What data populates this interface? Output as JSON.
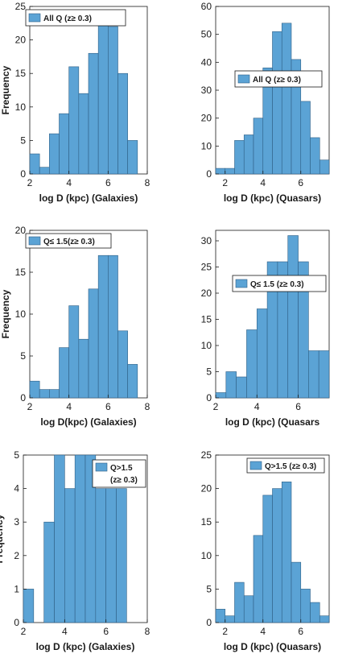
{
  "colors": {
    "bar_fill": "#5ba3d5",
    "bar_stroke": "#2f5f85",
    "axis": "#1a1a1a",
    "background": "#ffffff"
  },
  "chart_data": [
    {
      "type": "bar",
      "histogram": true,
      "xlabel": "log D (kpc) (Galaxies)",
      "ylabel": "Frequency",
      "xlim": [
        2,
        8
      ],
      "ylim": [
        0,
        25
      ],
      "xticks": [
        2,
        4,
        6,
        8
      ],
      "yticks": [
        0,
        5,
        10,
        15,
        20,
        25
      ],
      "legend": {
        "text": "All Q  (z≥ 0.3)",
        "placement": "top-left"
      },
      "bins": [
        {
          "x0": 2.0,
          "x1": 2.5,
          "count": 3
        },
        {
          "x0": 2.5,
          "x1": 3.0,
          "count": 1
        },
        {
          "x0": 3.0,
          "x1": 3.5,
          "count": 6
        },
        {
          "x0": 3.5,
          "x1": 4.0,
          "count": 9
        },
        {
          "x0": 4.0,
          "x1": 4.5,
          "count": 16
        },
        {
          "x0": 4.5,
          "x1": 5.0,
          "count": 12
        },
        {
          "x0": 5.0,
          "x1": 5.5,
          "count": 18
        },
        {
          "x0": 5.5,
          "x1": 6.0,
          "count": 23
        },
        {
          "x0": 6.0,
          "x1": 6.5,
          "count": 22
        },
        {
          "x0": 6.5,
          "x1": 7.0,
          "count": 15
        },
        {
          "x0": 7.0,
          "x1": 7.5,
          "count": 5
        }
      ]
    },
    {
      "type": "bar",
      "histogram": true,
      "xlabel": "log D (kpc) (Quasars)",
      "ylabel": "",
      "xlim": [
        1.5,
        7.5
      ],
      "ylim": [
        0,
        60
      ],
      "xticks": [
        2,
        4,
        6
      ],
      "yticks": [
        0,
        10,
        20,
        30,
        40,
        50,
        60
      ],
      "legend": {
        "text": "All Q  (z≥ 0.3)",
        "placement": "center-right"
      },
      "bins": [
        {
          "x0": 1.5,
          "x1": 2.0,
          "count": 2
        },
        {
          "x0": 2.0,
          "x1": 2.5,
          "count": 2
        },
        {
          "x0": 2.5,
          "x1": 3.0,
          "count": 12
        },
        {
          "x0": 3.0,
          "x1": 3.5,
          "count": 14
        },
        {
          "x0": 3.5,
          "x1": 4.0,
          "count": 20
        },
        {
          "x0": 4.0,
          "x1": 4.5,
          "count": 38
        },
        {
          "x0": 4.5,
          "x1": 5.0,
          "count": 51
        },
        {
          "x0": 5.0,
          "x1": 5.5,
          "count": 54
        },
        {
          "x0": 5.5,
          "x1": 6.0,
          "count": 41
        },
        {
          "x0": 6.0,
          "x1": 6.5,
          "count": 26
        },
        {
          "x0": 6.5,
          "x1": 7.0,
          "count": 13
        },
        {
          "x0": 7.0,
          "x1": 7.5,
          "count": 5
        }
      ]
    },
    {
      "type": "bar",
      "histogram": true,
      "xlabel": "log D(kpc) (Galaxies)",
      "ylabel": "Frequency",
      "xlim": [
        2,
        8
      ],
      "ylim": [
        0,
        20
      ],
      "xticks": [
        2,
        4,
        6,
        8
      ],
      "yticks": [
        0,
        5,
        10,
        15,
        20
      ],
      "legend": {
        "text": "Q≤ 1.5(z≥ 0.3)",
        "placement": "top-left"
      },
      "bins": [
        {
          "x0": 2.0,
          "x1": 2.5,
          "count": 2
        },
        {
          "x0": 2.5,
          "x1": 3.0,
          "count": 1
        },
        {
          "x0": 3.0,
          "x1": 3.5,
          "count": 1
        },
        {
          "x0": 3.5,
          "x1": 4.0,
          "count": 6
        },
        {
          "x0": 4.0,
          "x1": 4.5,
          "count": 11
        },
        {
          "x0": 4.5,
          "x1": 5.0,
          "count": 7
        },
        {
          "x0": 5.0,
          "x1": 5.5,
          "count": 13
        },
        {
          "x0": 5.5,
          "x1": 6.0,
          "count": 17
        },
        {
          "x0": 6.0,
          "x1": 6.5,
          "count": 17
        },
        {
          "x0": 6.5,
          "x1": 7.0,
          "count": 8
        },
        {
          "x0": 7.0,
          "x1": 7.5,
          "count": 4
        }
      ]
    },
    {
      "type": "bar",
      "histogram": true,
      "xlabel": "log D (kpc) (Quasars",
      "ylabel": "",
      "xlim": [
        2,
        7.5
      ],
      "ylim": [
        0,
        32
      ],
      "xticks": [
        2,
        4,
        6
      ],
      "yticks": [
        0,
        5,
        10,
        15,
        20,
        25,
        30
      ],
      "legend": {
        "text": "Q≤ 1.5 (z≥ 0.3)",
        "placement": "center-right"
      },
      "bins": [
        {
          "x0": 2.0,
          "x1": 2.5,
          "count": 1
        },
        {
          "x0": 2.5,
          "x1": 3.0,
          "count": 5
        },
        {
          "x0": 3.0,
          "x1": 3.5,
          "count": 4
        },
        {
          "x0": 3.5,
          "x1": 4.0,
          "count": 13
        },
        {
          "x0": 4.0,
          "x1": 4.5,
          "count": 17
        },
        {
          "x0": 4.5,
          "x1": 5.0,
          "count": 26
        },
        {
          "x0": 5.0,
          "x1": 5.5,
          "count": 26
        },
        {
          "x0": 5.5,
          "x1": 6.0,
          "count": 31
        },
        {
          "x0": 6.0,
          "x1": 6.5,
          "count": 26
        },
        {
          "x0": 6.5,
          "x1": 7.0,
          "count": 9
        },
        {
          "x0": 7.0,
          "x1": 7.5,
          "count": 9
        }
      ]
    },
    {
      "type": "bar",
      "histogram": true,
      "xlabel": "log D (kpc) (Galaxies)",
      "ylabel": "Frequency",
      "xlim": [
        2,
        8
      ],
      "ylim": [
        0,
        5
      ],
      "xticks": [
        2,
        4,
        6,
        8
      ],
      "yticks": [
        0,
        1,
        2,
        3,
        4,
        5
      ],
      "legend": {
        "lines": [
          "Q>1.5",
          "(z≥ 0.3)"
        ],
        "placement": "top-right"
      },
      "bins": [
        {
          "x0": 2.0,
          "x1": 2.5,
          "count": 1
        },
        {
          "x0": 2.5,
          "x1": 3.0,
          "count": 0
        },
        {
          "x0": 3.0,
          "x1": 3.5,
          "count": 3
        },
        {
          "x0": 3.5,
          "x1": 4.0,
          "count": 5
        },
        {
          "x0": 4.0,
          "x1": 4.5,
          "count": 4
        },
        {
          "x0": 4.5,
          "x1": 5.0,
          "count": 5
        },
        {
          "x0": 5.0,
          "x1": 5.5,
          "count": 5
        },
        {
          "x0": 5.5,
          "x1": 6.0,
          "count": 4
        },
        {
          "x0": 6.0,
          "x1": 6.5,
          "count": 4
        },
        {
          "x0": 6.5,
          "x1": 7.0,
          "count": 4
        }
      ]
    },
    {
      "type": "bar",
      "histogram": true,
      "xlabel": "log D (kpc) (Quasars)",
      "ylabel": "",
      "xlim": [
        1.5,
        7.5
      ],
      "ylim": [
        0,
        25
      ],
      "xticks": [
        2,
        4,
        6
      ],
      "yticks": [
        0,
        5,
        10,
        15,
        20,
        25
      ],
      "legend": {
        "text": "Q>1.5  (z≥ 0.3)",
        "placement": "top-right"
      },
      "bins": [
        {
          "x0": 1.5,
          "x1": 2.0,
          "count": 2
        },
        {
          "x0": 2.0,
          "x1": 2.5,
          "count": 1
        },
        {
          "x0": 2.5,
          "x1": 3.0,
          "count": 6
        },
        {
          "x0": 3.0,
          "x1": 3.5,
          "count": 4
        },
        {
          "x0": 3.5,
          "x1": 4.0,
          "count": 13
        },
        {
          "x0": 4.0,
          "x1": 4.5,
          "count": 19
        },
        {
          "x0": 4.5,
          "x1": 5.0,
          "count": 20
        },
        {
          "x0": 5.0,
          "x1": 5.5,
          "count": 21
        },
        {
          "x0": 5.5,
          "x1": 6.0,
          "count": 9
        },
        {
          "x0": 6.0,
          "x1": 6.5,
          "count": 5
        },
        {
          "x0": 6.5,
          "x1": 7.0,
          "count": 3
        },
        {
          "x0": 7.0,
          "x1": 7.5,
          "count": 1
        }
      ]
    }
  ]
}
